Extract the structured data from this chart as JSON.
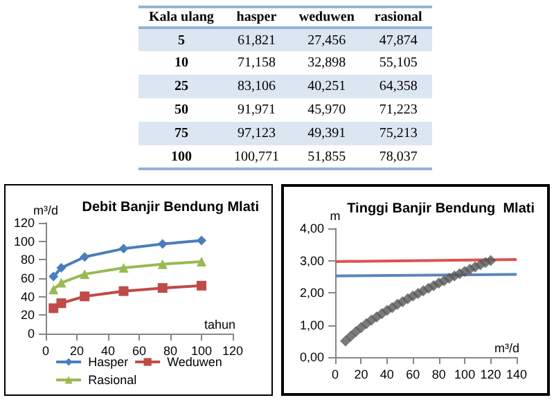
{
  "chart_data": [
    {
      "type": "other",
      "ylabel": "Kala ulang",
      "categories": [
        "hasper",
        "weduwen",
        "rasional"
      ],
      "y_categories": [
        "5",
        "10",
        "25",
        "50",
        "75",
        "100"
      ],
      "cell_labels": [
        [
          "61,821",
          "27,456",
          "47,874"
        ],
        [
          "71,158",
          "32,898",
          "55,105"
        ],
        [
          "83,106",
          "40,251",
          "64,358"
        ],
        [
          "91,971",
          "45,970",
          "71,223"
        ],
        [
          "97,123",
          "49,391",
          "75,213"
        ],
        [
          "100,771",
          "51,855",
          "78,037"
        ]
      ]
    },
    {
      "type": "line",
      "title": "Debit Banjir Bendung Mlati",
      "xlabel": "tahun",
      "ylabel": "m³/d",
      "x": [
        5,
        10,
        25,
        50,
        75,
        100
      ],
      "series": [
        {
          "name": "Hasper",
          "color": "#4a7ebb",
          "marker": "diamond",
          "values": [
            61.8,
            71.2,
            83.1,
            92.0,
            97.1,
            100.8
          ]
        },
        {
          "name": "Weduwen",
          "color": "#be4b48",
          "marker": "square",
          "values": [
            27.5,
            32.9,
            40.3,
            46.0,
            49.4,
            51.9
          ]
        },
        {
          "name": "Rasional",
          "color": "#98b954",
          "marker": "triangle",
          "values": [
            47.9,
            55.1,
            64.4,
            71.2,
            75.2,
            78.0
          ]
        }
      ],
      "xlim": [
        0,
        120
      ],
      "xticks": [
        0,
        20,
        40,
        60,
        80,
        100,
        120
      ],
      "ylim": [
        0,
        120
      ],
      "yticks": [
        0,
        20,
        40,
        60,
        80,
        100,
        120
      ],
      "legend": "bottom"
    },
    {
      "type": "scatter",
      "title": "Tinggi Banjir Bendung  Mlati",
      "xlabel": "m³/d",
      "ylabel": "m",
      "series": [
        {
          "type": "scatter",
          "color": "#595959",
          "marker": "diamond",
          "x": [
            8,
            12,
            16,
            20,
            24,
            28,
            32,
            36,
            40,
            44,
            48,
            52,
            56,
            60,
            64,
            68,
            72,
            76,
            80,
            84,
            88,
            92,
            96,
            100,
            104,
            108,
            112,
            116,
            120
          ],
          "values": [
            0.5,
            0.65,
            0.79,
            0.92,
            1.04,
            1.15,
            1.25,
            1.35,
            1.45,
            1.54,
            1.64,
            1.72,
            1.81,
            1.9,
            1.98,
            2.06,
            2.14,
            2.22,
            2.3,
            2.37,
            2.45,
            2.52,
            2.59,
            2.66,
            2.73,
            2.8,
            2.87,
            2.94,
            3.0
          ]
        },
        {
          "type": "line",
          "color": "#e05050",
          "marker": "none",
          "x": [
            0,
            140
          ],
          "values": [
            2.97,
            3.03
          ]
        },
        {
          "type": "line",
          "color": "#5b86b8",
          "marker": "none",
          "x": [
            0,
            140
          ],
          "values": [
            2.52,
            2.57
          ]
        }
      ],
      "xlim": [
        0,
        140
      ],
      "xticks": [
        0,
        20,
        40,
        60,
        80,
        100,
        120,
        140
      ],
      "ylim": [
        0,
        4
      ],
      "yticks": [
        {
          "value": 0,
          "label": "0,00"
        },
        {
          "value": 1,
          "label": "1,00"
        },
        {
          "value": 2,
          "label": "2,00"
        },
        {
          "value": 3,
          "label": "3,00"
        },
        {
          "value": 4,
          "label": "4,00"
        }
      ]
    }
  ]
}
